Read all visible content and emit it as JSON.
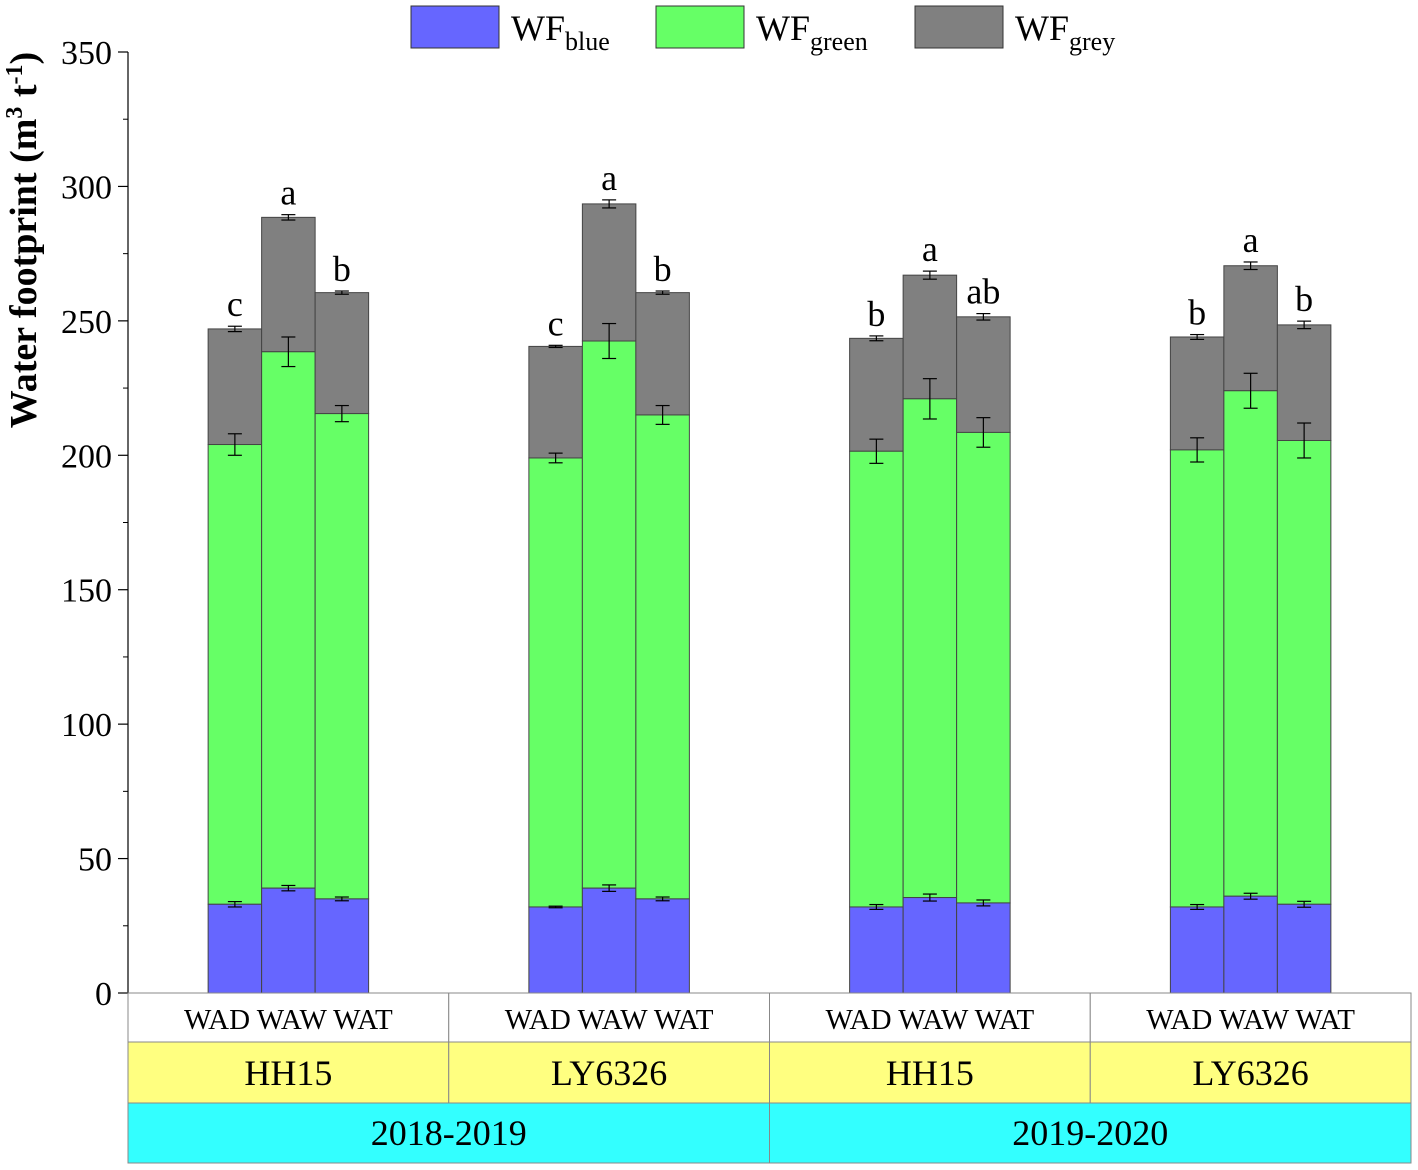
{
  "chart_data": {
    "type": "bar",
    "stacked": true,
    "ylabel": "Water footprint (m",
    "ylabel_sup": "3",
    "ylabel_unit": "t",
    "ylabel_sup2": "-1",
    "ylabel_end": ")",
    "ylim": [
      0,
      350
    ],
    "yticks": [
      0,
      50,
      100,
      150,
      200,
      250,
      300,
      350
    ],
    "legend_position": "top",
    "legend": [
      {
        "key": "blue",
        "prefix": "WF",
        "sub": "blue",
        "color": "#6666ff"
      },
      {
        "key": "green",
        "prefix": "WF",
        "sub": "green",
        "color": "#66ff66"
      },
      {
        "key": "grey",
        "prefix": "WF",
        "sub": "grey",
        "color": "#808080"
      }
    ],
    "groups": [
      {
        "year": "2018-2019",
        "variety": "HH15",
        "bars": [
          {
            "treatment": "WAD",
            "blue": 33,
            "blue_err": 1,
            "green_top": 204,
            "green_err": 4,
            "total": 247,
            "total_err": 1,
            "letter": "c"
          },
          {
            "treatment": "WAW",
            "blue": 39,
            "blue_err": 1,
            "green_top": 238.5,
            "green_err": 5.5,
            "total": 288.5,
            "total_err": 1,
            "letter": "a"
          },
          {
            "treatment": "WAT",
            "blue": 35,
            "blue_err": 0.7,
            "green_top": 215.5,
            "green_err": 3,
            "total": 260.5,
            "total_err": 0.6,
            "letter": "b"
          }
        ]
      },
      {
        "year": "2018-2019",
        "variety": "LY6326",
        "bars": [
          {
            "treatment": "WAD",
            "blue": 32,
            "blue_err": 0.3,
            "green_top": 199,
            "green_err": 1.8,
            "total": 240.5,
            "total_err": 0.4,
            "letter": "c"
          },
          {
            "treatment": "WAW",
            "blue": 39,
            "blue_err": 1.2,
            "green_top": 242.5,
            "green_err": 6.5,
            "total": 293.5,
            "total_err": 1.5,
            "letter": "a"
          },
          {
            "treatment": "WAT",
            "blue": 35,
            "blue_err": 0.7,
            "green_top": 215,
            "green_err": 3.5,
            "total": 260.5,
            "total_err": 0.6,
            "letter": "b"
          }
        ]
      },
      {
        "year": "2019-2020",
        "variety": "HH15",
        "bars": [
          {
            "treatment": "WAD",
            "blue": 32,
            "blue_err": 0.9,
            "green_top": 201.5,
            "green_err": 4.5,
            "total": 243.5,
            "total_err": 0.9,
            "letter": "b"
          },
          {
            "treatment": "WAW",
            "blue": 35.5,
            "blue_err": 1.3,
            "green_top": 221,
            "green_err": 7.5,
            "total": 267,
            "total_err": 1.5,
            "letter": "a"
          },
          {
            "treatment": "WAT",
            "blue": 33.5,
            "blue_err": 1.1,
            "green_top": 208.5,
            "green_err": 5.5,
            "total": 251.5,
            "total_err": 1.2,
            "letter": "ab"
          }
        ]
      },
      {
        "year": "2019-2020",
        "variety": "LY6326",
        "bars": [
          {
            "treatment": "WAD",
            "blue": 32,
            "blue_err": 0.9,
            "green_top": 202,
            "green_err": 4.5,
            "total": 244,
            "total_err": 0.9,
            "letter": "b"
          },
          {
            "treatment": "WAW",
            "blue": 36,
            "blue_err": 1.1,
            "green_top": 224,
            "green_err": 6.5,
            "total": 270.5,
            "total_err": 1.4,
            "letter": "a"
          },
          {
            "treatment": "WAT",
            "blue": 33,
            "blue_err": 1.1,
            "green_top": 205.5,
            "green_err": 6.5,
            "total": 248.5,
            "total_err": 1.4,
            "letter": "b"
          }
        ]
      }
    ],
    "years": [
      "2018-2019",
      "2019-2020"
    ],
    "table_colors": {
      "variety_row": "#ffff80",
      "year_row": "#33ffff"
    }
  }
}
